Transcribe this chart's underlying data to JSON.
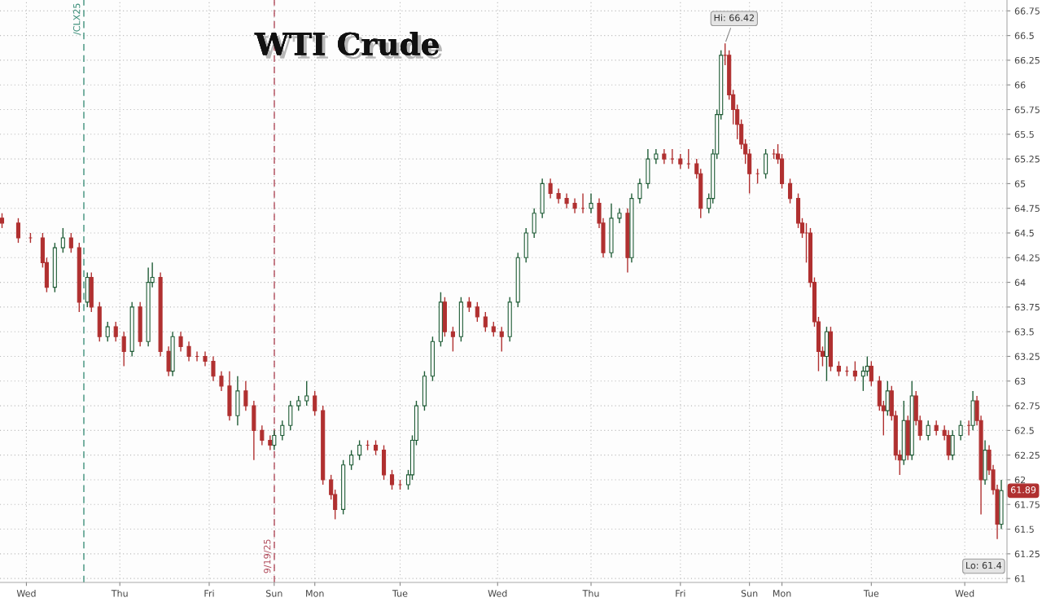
{
  "chart_data": {
    "type": "candlestick",
    "title": "WTI Crude",
    "categories": [
      null,
      null,
      null,
      null,
      null,
      null,
      "Wed",
      null,
      null,
      null,
      null,
      null,
      null,
      null,
      null,
      null,
      null,
      null,
      null,
      null,
      null,
      null,
      null,
      null,
      null,
      null,
      null,
      null,
      null,
      "Thu",
      null,
      null,
      null,
      null,
      null,
      null,
      null,
      null,
      null,
      null,
      null,
      null,
      null,
      null,
      null,
      null,
      null,
      null,
      null,
      null,
      null,
      "Fri",
      null,
      null,
      null,
      null,
      null,
      null,
      null,
      null,
      null,
      null,
      null,
      null,
      null,
      null,
      null,
      "Sun",
      null,
      null,
      null,
      null,
      null,
      null,
      null,
      null,
      null,
      "Mon",
      null,
      null,
      null,
      null,
      null,
      null,
      null,
      null,
      null,
      null,
      null,
      null,
      null,
      null,
      null,
      null,
      null,
      null,
      null,
      null,
      "Tue",
      null,
      null,
      null,
      null,
      null,
      null,
      null,
      null,
      null,
      null,
      null,
      null,
      null,
      null,
      null,
      null,
      null,
      null,
      null,
      null,
      null,
      null,
      null,
      "Wed",
      null,
      null,
      null,
      null,
      null,
      null,
      null,
      null,
      null,
      null,
      null,
      null,
      null,
      null,
      null,
      null,
      null,
      null,
      null,
      null,
      null,
      null,
      "Thu",
      null,
      null,
      null,
      null,
      null,
      null,
      null,
      null,
      null,
      null,
      null,
      null,
      null,
      null,
      null,
      null,
      null,
      null,
      null,
      null,
      null,
      "Fri",
      null,
      null,
      null,
      null,
      null,
      null,
      null,
      null,
      null,
      null,
      null,
      null,
      null,
      null,
      null,
      null,
      "Sun",
      null,
      null,
      null,
      null,
      null,
      null,
      null,
      "Mon",
      null,
      null,
      null,
      null,
      null,
      null,
      null,
      null,
      null,
      null,
      null,
      null,
      null,
      null,
      null,
      null,
      null,
      null,
      null,
      null,
      null,
      "Tue",
      null,
      null,
      null,
      null,
      null,
      null,
      null,
      null,
      null,
      null,
      null,
      null,
      null,
      null,
      null,
      null,
      null,
      null,
      null,
      null,
      null,
      null,
      "Wed",
      null,
      null,
      null,
      null,
      null,
      null,
      null,
      null,
      null,
      null
    ],
    "ohlc": [
      [
        64.65,
        64.7,
        64.55,
        64.6
      ],
      null,
      null,
      null,
      [
        64.6,
        64.65,
        64.4,
        64.45
      ],
      null,
      null,
      [
        64.45,
        64.5,
        64.4,
        64.45
      ],
      null,
      null,
      [
        64.45,
        64.5,
        64.15,
        64.2
      ],
      [
        64.2,
        64.25,
        63.9,
        63.95
      ],
      null,
      [
        63.95,
        64.4,
        63.9,
        64.35
      ],
      null,
      [
        64.35,
        64.55,
        64.3,
        64.45
      ],
      null,
      [
        64.45,
        64.5,
        64.3,
        64.35
      ],
      null,
      [
        64.35,
        64.4,
        63.7,
        63.8
      ],
      null,
      [
        63.8,
        64.1,
        63.75,
        64.05
      ],
      [
        64.05,
        64.1,
        63.7,
        63.75
      ],
      null,
      [
        63.75,
        63.8,
        63.4,
        63.45
      ],
      null,
      [
        63.45,
        63.6,
        63.4,
        63.55
      ],
      null,
      [
        63.55,
        63.6,
        63.4,
        63.45
      ],
      null,
      [
        63.45,
        63.5,
        63.15,
        63.3
      ],
      null,
      [
        63.3,
        63.8,
        63.25,
        63.75
      ],
      null,
      [
        63.75,
        63.8,
        63.35,
        63.4
      ],
      null,
      [
        63.4,
        64.15,
        63.35,
        64.0
      ],
      [
        64.0,
        64.2,
        63.95,
        64.05
      ],
      null,
      [
        64.05,
        64.1,
        63.25,
        63.3
      ],
      null,
      [
        63.3,
        63.35,
        63.05,
        63.1
      ],
      [
        63.1,
        63.5,
        63.05,
        63.45
      ],
      null,
      [
        63.45,
        63.5,
        63.3,
        63.35
      ],
      null,
      [
        63.35,
        63.4,
        63.2,
        63.25
      ],
      null,
      [
        63.25,
        63.3,
        63.2,
        63.25
      ],
      null,
      [
        63.25,
        63.3,
        63.15,
        63.2
      ],
      null,
      [
        63.2,
        63.25,
        63.0,
        63.05
      ],
      null,
      [
        63.05,
        63.1,
        62.9,
        62.95
      ],
      null,
      [
        62.95,
        63.1,
        62.6,
        62.65
      ],
      null,
      [
        62.65,
        63.05,
        62.55,
        62.9
      ],
      null,
      [
        62.9,
        63.0,
        62.7,
        62.75
      ],
      null,
      [
        62.75,
        62.8,
        62.2,
        62.5
      ],
      null,
      [
        62.5,
        62.55,
        62.35,
        62.4
      ],
      null,
      [
        62.4,
        62.45,
        62.3,
        62.35
      ],
      [
        62.35,
        62.5,
        62.3,
        62.45
      ],
      null,
      [
        62.45,
        62.6,
        62.4,
        62.55
      ],
      null,
      [
        62.55,
        62.8,
        62.5,
        62.75
      ],
      null,
      [
        62.75,
        62.85,
        62.7,
        62.8
      ],
      null,
      [
        62.8,
        63.0,
        62.75,
        62.85
      ],
      null,
      [
        62.85,
        62.9,
        62.65,
        62.7
      ],
      null,
      [
        62.7,
        62.75,
        61.95,
        62.0
      ],
      null,
      [
        62.0,
        62.05,
        61.8,
        61.85
      ],
      [
        61.85,
        61.9,
        61.6,
        61.7
      ],
      null,
      [
        61.7,
        62.2,
        61.65,
        62.15
      ],
      null,
      [
        62.15,
        62.3,
        62.1,
        62.25
      ],
      null,
      [
        62.25,
        62.4,
        62.2,
        62.35
      ],
      null,
      [
        62.35,
        62.4,
        62.3,
        62.35
      ],
      null,
      [
        62.35,
        62.4,
        62.25,
        62.3
      ],
      null,
      [
        62.3,
        62.35,
        62.0,
        62.05
      ],
      null,
      [
        62.05,
        62.1,
        61.9,
        61.95
      ],
      null,
      [
        61.95,
        62.0,
        61.9,
        61.95
      ],
      null,
      [
        61.95,
        62.1,
        61.9,
        62.05
      ],
      [
        62.05,
        62.45,
        62.0,
        62.4
      ],
      [
        62.4,
        62.8,
        62.35,
        62.75
      ],
      null,
      [
        62.75,
        63.1,
        62.7,
        63.05
      ],
      null,
      [
        63.05,
        63.45,
        63.0,
        63.4
      ],
      null,
      [
        63.4,
        63.9,
        63.35,
        63.8
      ],
      [
        63.8,
        63.85,
        63.45,
        63.5
      ],
      null,
      [
        63.5,
        63.55,
        63.3,
        63.45
      ],
      null,
      [
        63.45,
        63.85,
        63.4,
        63.8
      ],
      null,
      [
        63.8,
        63.85,
        63.7,
        63.75
      ],
      null,
      [
        63.75,
        63.8,
        63.6,
        63.65
      ],
      null,
      [
        63.65,
        63.7,
        63.5,
        63.55
      ],
      null,
      [
        63.55,
        63.6,
        63.45,
        63.5
      ],
      null,
      [
        63.5,
        63.55,
        63.3,
        63.45
      ],
      null,
      [
        63.45,
        63.85,
        63.4,
        63.8
      ],
      null,
      [
        63.8,
        64.3,
        63.75,
        64.25
      ],
      null,
      [
        64.25,
        64.55,
        64.2,
        64.5
      ],
      null,
      [
        64.5,
        64.75,
        64.45,
        64.7
      ],
      null,
      [
        64.7,
        65.05,
        64.65,
        65.0
      ],
      null,
      [
        65.0,
        65.05,
        64.85,
        64.9
      ],
      null,
      [
        64.9,
        64.95,
        64.8,
        64.85
      ],
      null,
      [
        64.85,
        64.9,
        64.75,
        64.8
      ],
      null,
      [
        64.8,
        64.85,
        64.7,
        64.75
      ],
      null,
      [
        64.75,
        64.9,
        64.7,
        64.75
      ],
      null,
      [
        64.75,
        64.9,
        64.7,
        64.8
      ],
      null,
      [
        64.8,
        64.85,
        64.55,
        64.6
      ],
      [
        64.6,
        64.65,
        64.25,
        64.3
      ],
      null,
      [
        64.3,
        64.8,
        64.25,
        64.65
      ],
      null,
      [
        64.65,
        64.75,
        64.6,
        64.7
      ],
      null,
      [
        64.7,
        64.75,
        64.1,
        64.25
      ],
      [
        64.25,
        64.9,
        64.2,
        64.85
      ],
      null,
      [
        64.85,
        65.05,
        64.8,
        65.0
      ],
      null,
      [
        65.0,
        65.35,
        64.95,
        65.25
      ],
      null,
      [
        65.25,
        65.35,
        65.2,
        65.3
      ],
      null,
      [
        65.3,
        65.35,
        65.2,
        65.25
      ],
      null,
      [
        65.25,
        65.35,
        65.2,
        65.25
      ],
      null,
      [
        65.25,
        65.3,
        65.15,
        65.2
      ],
      null,
      [
        65.2,
        65.35,
        65.15,
        65.2
      ],
      null,
      [
        65.2,
        65.25,
        65.05,
        65.1
      ],
      [
        65.1,
        65.15,
        64.65,
        64.75
      ],
      null,
      [
        64.75,
        64.9,
        64.7,
        64.85
      ],
      [
        64.85,
        65.35,
        64.8,
        65.3
      ],
      [
        65.3,
        65.75,
        65.25,
        65.7
      ],
      [
        65.7,
        66.35,
        65.65,
        66.3
      ],
      [
        66.3,
        66.42,
        66.2,
        66.3
      ],
      [
        66.3,
        66.35,
        65.85,
        65.9
      ],
      [
        65.9,
        65.95,
        65.6,
        65.75
      ],
      [
        65.75,
        65.8,
        65.45,
        65.6
      ],
      [
        65.6,
        65.65,
        65.35,
        65.4
      ],
      [
        65.4,
        65.45,
        65.2,
        65.3
      ],
      [
        65.3,
        65.35,
        64.9,
        65.1
      ],
      null,
      [
        65.1,
        65.15,
        65.0,
        65.1
      ],
      null,
      [
        65.1,
        65.35,
        65.05,
        65.3
      ],
      null,
      [
        65.3,
        65.35,
        65.25,
        65.3
      ],
      [
        65.3,
        65.4,
        65.2,
        65.25
      ],
      [
        65.25,
        65.3,
        64.95,
        65.0
      ],
      null,
      [
        65.0,
        65.05,
        64.8,
        64.85
      ],
      null,
      [
        64.85,
        64.9,
        64.55,
        64.6
      ],
      [
        64.6,
        64.65,
        64.45,
        64.5
      ],
      [
        64.5,
        64.6,
        64.2,
        64.5
      ],
      [
        64.5,
        64.55,
        63.95,
        64.0
      ],
      [
        64.0,
        64.05,
        63.55,
        63.6
      ],
      [
        63.6,
        63.65,
        63.1,
        63.3
      ],
      [
        63.3,
        63.35,
        63.15,
        63.25
      ],
      [
        63.25,
        63.55,
        63.0,
        63.5
      ],
      [
        63.5,
        63.55,
        63.1,
        63.15
      ],
      null,
      [
        63.15,
        63.2,
        63.05,
        63.1
      ],
      null,
      [
        63.1,
        63.15,
        63.05,
        63.1
      ],
      null,
      [
        63.1,
        63.2,
        63.0,
        63.05
      ],
      null,
      [
        63.05,
        63.15,
        62.9,
        63.1
      ],
      [
        63.1,
        63.25,
        63.05,
        63.15
      ],
      [
        63.15,
        63.2,
        62.95,
        63.0
      ],
      null,
      [
        63.0,
        63.05,
        62.7,
        62.75
      ],
      [
        62.75,
        62.8,
        62.45,
        62.7
      ],
      [
        62.7,
        63.0,
        62.65,
        62.9
      ],
      [
        62.9,
        62.95,
        62.6,
        62.65
      ],
      [
        62.65,
        62.7,
        62.2,
        62.25
      ],
      [
        62.25,
        62.3,
        62.05,
        62.2
      ],
      [
        62.2,
        62.8,
        62.15,
        62.6
      ],
      [
        62.6,
        62.65,
        62.2,
        62.25
      ],
      [
        62.25,
        63.0,
        62.2,
        62.85
      ],
      [
        62.85,
        62.9,
        62.55,
        62.6
      ],
      [
        62.6,
        62.65,
        62.4,
        62.45
      ],
      null,
      [
        62.45,
        62.6,
        62.4,
        62.55
      ],
      null,
      [
        62.55,
        62.6,
        62.45,
        62.5
      ],
      null,
      [
        62.5,
        62.55,
        62.4,
        62.45
      ],
      [
        62.45,
        62.5,
        62.2,
        62.25
      ],
      [
        62.25,
        62.5,
        62.2,
        62.45
      ],
      null,
      [
        62.45,
        62.6,
        62.4,
        62.55
      ],
      null,
      [
        62.55,
        62.6,
        62.45,
        62.55
      ],
      [
        62.55,
        62.9,
        62.5,
        62.8
      ],
      [
        62.8,
        62.85,
        62.55,
        62.6
      ],
      [
        62.6,
        62.65,
        61.65,
        62.0
      ],
      [
        62.0,
        62.4,
        61.95,
        62.3
      ],
      [
        62.3,
        62.35,
        62.05,
        62.1
      ],
      [
        62.1,
        62.15,
        61.85,
        61.9
      ],
      [
        61.9,
        61.95,
        61.4,
        61.55
      ],
      [
        61.55,
        62.0,
        61.5,
        61.89
      ],
      null
    ],
    "colors": [
      "#b03030",
      null,
      null,
      null,
      "#b03030",
      null,
      null,
      "#b03030",
      null,
      null,
      "#b03030",
      "#b03030",
      null,
      "#1f5c36",
      null,
      "#1f5c36",
      null,
      "#b03030",
      null,
      "#b03030",
      null,
      "#1f5c36",
      "#b03030",
      null,
      "#b03030",
      null,
      "#1f5c36",
      null,
      "#b03030",
      null,
      "#b03030",
      null,
      "#1f5c36",
      null,
      "#b03030",
      null,
      "#1f5c36",
      "#1f5c36",
      null,
      "#b03030",
      null,
      "#b03030",
      "#1f5c36",
      null,
      "#b03030",
      null,
      "#b03030",
      null,
      "#b03030",
      null,
      "#b03030",
      null,
      "#b03030",
      null,
      "#b03030",
      null,
      "#b03030",
      null,
      "#1f5c36",
      null,
      "#b03030",
      null,
      "#b03030",
      null,
      "#b03030",
      null,
      "#b03030",
      "#1f5c36",
      null,
      "#1f5c36",
      null,
      "#1f5c36",
      null,
      "#1f5c36",
      null,
      "#1f5c36",
      null,
      "#b03030",
      null,
      "#b03030",
      null,
      "#b03030",
      "#b03030",
      null,
      "#1f5c36",
      null,
      "#1f5c36",
      null,
      "#1f5c36",
      null,
      "#b03030",
      null,
      "#b03030",
      null,
      "#b03030",
      null,
      "#b03030",
      null,
      "#b03030",
      null,
      "#1f5c36",
      "#1f5c36",
      "#1f5c36",
      null,
      "#1f5c36",
      null,
      "#1f5c36",
      null,
      "#1f5c36",
      "#b03030",
      null,
      "#b03030",
      null,
      "#1f5c36",
      null,
      "#b03030",
      null,
      "#b03030",
      null,
      "#b03030",
      null,
      "#b03030",
      null,
      "#b03030",
      null,
      "#1f5c36",
      null,
      "#1f5c36",
      null,
      "#1f5c36",
      null,
      "#1f5c36",
      null,
      "#1f5c36",
      null,
      "#b03030",
      null,
      "#b03030",
      null,
      "#b03030",
      null,
      "#b03030",
      null,
      "#b03030",
      null,
      "#1f5c36",
      null,
      "#b03030",
      "#b03030",
      null,
      "#1f5c36",
      null,
      "#1f5c36",
      null,
      "#b03030",
      "#1f5c36",
      null,
      "#1f5c36",
      null,
      "#1f5c36",
      null,
      "#1f5c36",
      null,
      "#b03030",
      null,
      "#b03030",
      null,
      "#b03030",
      null,
      "#b03030",
      null,
      "#b03030",
      "#b03030",
      null,
      "#1f5c36",
      "#1f5c36",
      "#1f5c36",
      "#1f5c36",
      "#b03030",
      "#b03030",
      "#b03030",
      "#b03030",
      "#b03030",
      "#b03030",
      "#b03030",
      null,
      "#b03030",
      null,
      "#1f5c36",
      null,
      "#b03030",
      "#b03030",
      "#b03030",
      null,
      "#b03030",
      null,
      "#b03030",
      "#b03030",
      "#b03030",
      "#b03030",
      "#b03030",
      "#b03030",
      "#b03030",
      "#1f5c36",
      "#b03030",
      null,
      "#b03030",
      null,
      "#b03030",
      null,
      "#b03030",
      null,
      "#1f5c36",
      "#1f5c36",
      "#b03030",
      null,
      "#b03030",
      "#b03030",
      "#1f5c36",
      "#b03030",
      "#b03030",
      "#b03030",
      "#1f5c36",
      "#b03030",
      "#1f5c36",
      "#b03030",
      "#b03030",
      null,
      "#1f5c36",
      null,
      "#b03030",
      null,
      "#b03030",
      "#b03030",
      "#1f5c36",
      null,
      "#1f5c36",
      null,
      "#b03030",
      "#1f5c36",
      "#b03030",
      "#b03030",
      "#1f5c36",
      "#b03030",
      "#b03030",
      "#b03030",
      "#1f5c36",
      null
    ],
    "ylim": [
      60.96,
      66.86
    ],
    "yticks": [
      61,
      61.25,
      61.5,
      61.75,
      62,
      62.25,
      62.5,
      62.75,
      63,
      63.25,
      63.5,
      63.75,
      64,
      64.25,
      64.5,
      64.75,
      65,
      65.25,
      65.5,
      65.75,
      66,
      66.25,
      66.5,
      66.75
    ],
    "grid": true,
    "annotations": [
      "Hi: 66.42",
      "Lo: 61.4",
      "61.89",
      "/CLX25",
      "9/19/25"
    ]
  }
}
